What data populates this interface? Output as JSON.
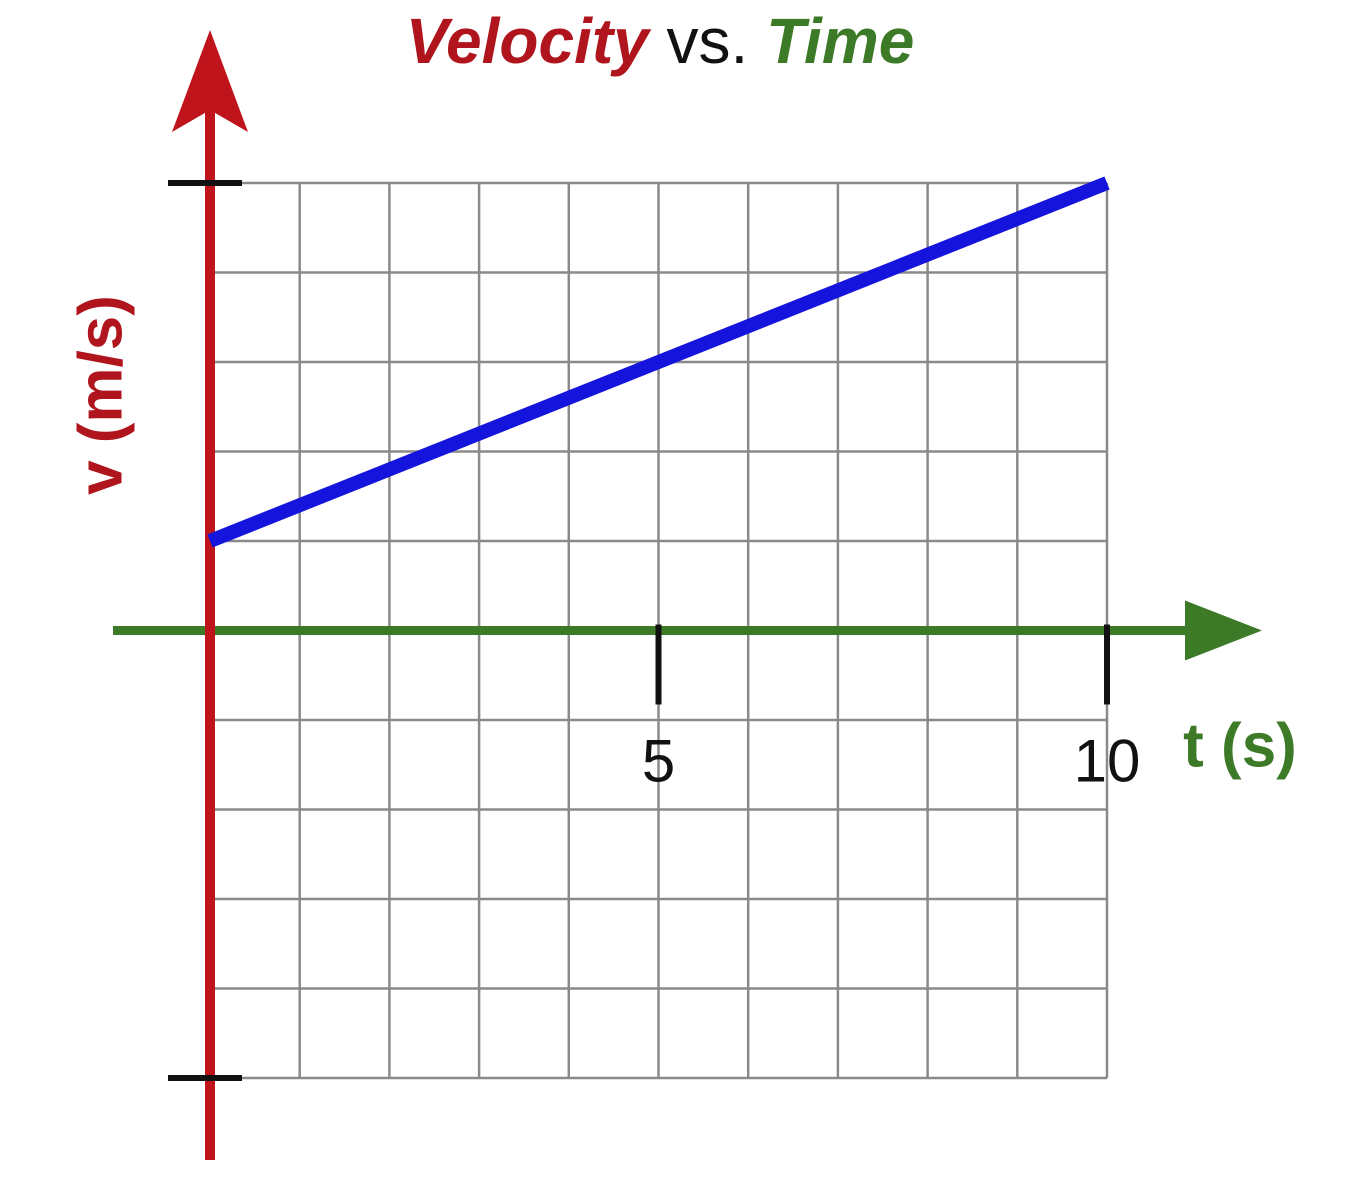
{
  "chart_data": {
    "type": "line",
    "title": [
      "Velocity",
      "vs.",
      "Time"
    ],
    "x_label": "t (s)",
    "y_label": "v (m/s)",
    "x": [
      0,
      10
    ],
    "series": [
      {
        "color": "#1414dc",
        "values": [
          1,
          5
        ]
      }
    ],
    "xlim": [
      0,
      10
    ],
    "ylim": [
      -5,
      5
    ],
    "xticks": [
      5,
      10
    ],
    "grid": true
  }
}
